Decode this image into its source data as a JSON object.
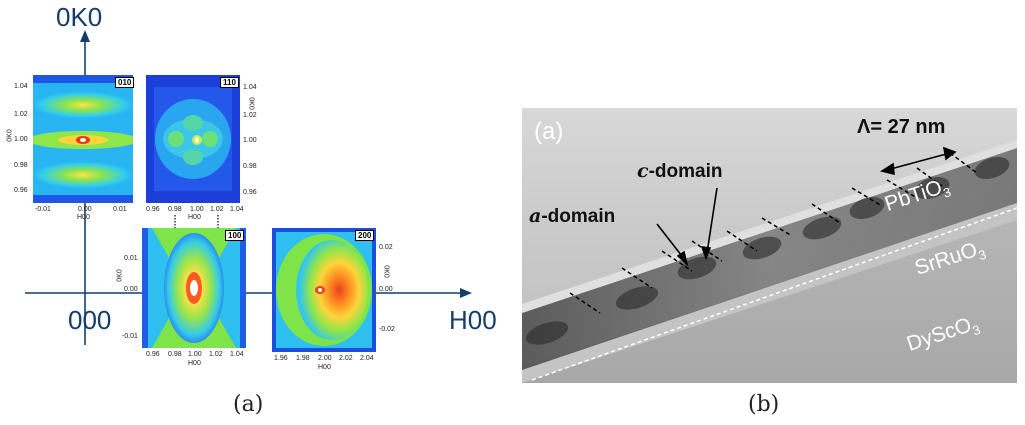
{
  "panel_a": {
    "caption": "(a)",
    "axis_vertical_label": "0K0",
    "axis_horizontal_label": "H00",
    "origin_label": "000",
    "maps": [
      {
        "reflection": "010",
        "y_axis_label": "0K0",
        "x_axis_label": "H00",
        "y_ticks": [
          "1.04",
          "1.02",
          "1.00",
          "0.98",
          "0.96"
        ],
        "x_ticks": [
          "-0.01",
          "0.00",
          "0.01"
        ]
      },
      {
        "reflection": "110",
        "y_axis_label": "0K0",
        "x_axis_label": "H00",
        "y_ticks": [
          "1.04",
          "1.02",
          "1.00",
          "0.98",
          "0.96"
        ],
        "x_ticks": [
          "0.96",
          "0.98",
          "1.00",
          "1.02",
          "1.04"
        ]
      },
      {
        "reflection": "100",
        "y_axis_label": "0K0",
        "x_axis_label": "H00",
        "y_ticks": [
          "0.01",
          "0.00",
          "-0.01"
        ],
        "x_ticks": [
          "0.96",
          "0.98",
          "1.00",
          "1.02",
          "1.04"
        ]
      },
      {
        "reflection": "200",
        "y_axis_label": "0K0",
        "x_axis_label": "H00",
        "y_ticks": [
          "0.02",
          "0.00",
          "-0.02"
        ],
        "x_ticks": [
          "1.96",
          "1.98",
          "2.00",
          "2.02",
          "2.04"
        ]
      }
    ]
  },
  "panel_b": {
    "caption": "(b)",
    "panel_tag": "(a)",
    "c_domain_label_italic": "c",
    "c_domain_label_rest": "-domain",
    "a_domain_label_italic": "a",
    "a_domain_label_rest": "-domain",
    "period_label": "Λ= 27 nm",
    "layer_top": "PbTiO",
    "layer_top_sub": "3",
    "layer_middle": "SrRuO",
    "layer_middle_sub": "3",
    "layer_bottom": "DyScO",
    "layer_bottom_sub": "3"
  },
  "colors": {
    "axis": "#143d6e",
    "map_background": "#1a3fd8",
    "map_mid": "#33c8ff",
    "map_high": "#7fe34a",
    "map_peak": "#ff3b1a"
  }
}
